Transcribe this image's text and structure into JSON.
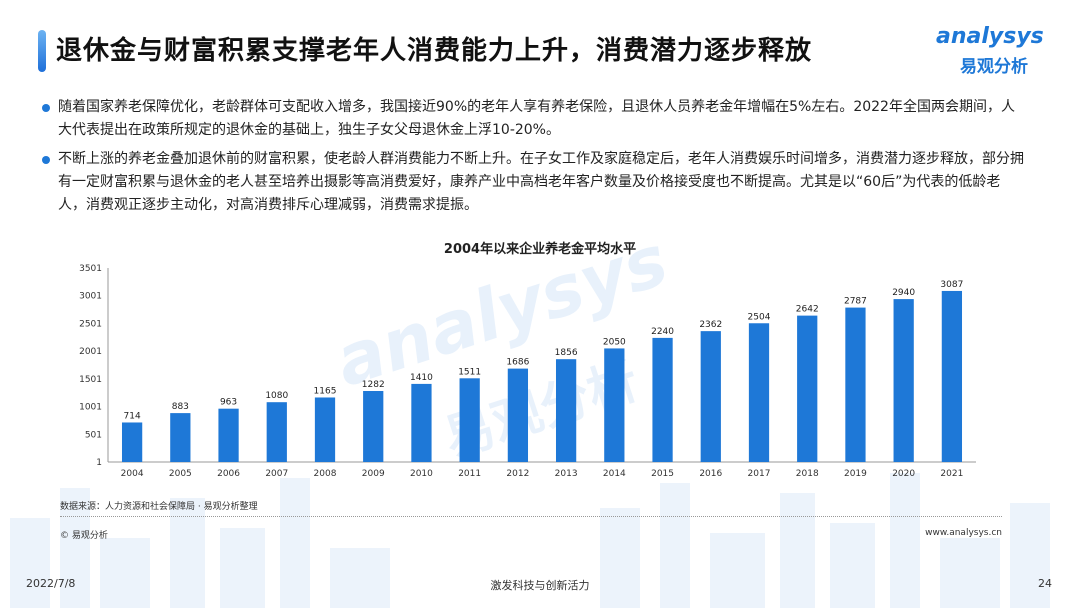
{
  "header": {
    "title": "退休金与财富积累支撑老年人消费能力上升，消费潜力逐步释放",
    "logo_en": "analysys",
    "logo_cn": "易观分析"
  },
  "bullets": [
    "随着国家养老保障优化，老龄群体可支配收入增多，我国接近90%的老年人享有养老保险，且退休人员养老金年增幅在5%左右。2022年全国两会期间，人大代表提出在政策所规定的退休金的基础上，独生子女父母退休金上浮10-20%。",
    "不断上涨的养老金叠加退休前的财富积累，使老龄人群消费能力不断上升。在子女工作及家庭稳定后，老年人消费娱乐时间增多，消费潜力逐步释放，部分拥有一定财富积累与退休金的老人甚至培养出摄影等高消费爱好，康养产业中高档老年客户数量及价格接受度也不断提高。尤其是以“60后”为代表的低龄老人，消费观正逐步主动化，对高消费排斥心理减弱，消费需求提振。"
  ],
  "chart_data": {
    "type": "bar",
    "title": "2004年以来企业养老金平均水平",
    "xlabel": "",
    "ylabel": "",
    "categories": [
      "2004",
      "2005",
      "2006",
      "2007",
      "2008",
      "2009",
      "2010",
      "2011",
      "2012",
      "2013",
      "2014",
      "2015",
      "2016",
      "2017",
      "2018",
      "2019",
      "2020",
      "2021"
    ],
    "values": [
      714,
      883,
      963,
      1080,
      1165,
      1282,
      1410,
      1511,
      1686,
      1856,
      2050,
      2240,
      2362,
      2504,
      2642,
      2787,
      2940,
      3087
    ],
    "ylim": [
      1,
      3501
    ],
    "yticks": [
      1,
      501,
      1001,
      1501,
      2001,
      2501,
      3001,
      3501
    ],
    "color": "#1e78d7",
    "grid": false,
    "legend": "none"
  },
  "source": "数据来源：人力资源和社会保障局 · 易观分析整理",
  "copyright": "© 易观分析",
  "website": "www.analysys.cn",
  "footer": {
    "date": "2022/7/8",
    "slogan": "激发科技与创新活力",
    "page": "24"
  }
}
